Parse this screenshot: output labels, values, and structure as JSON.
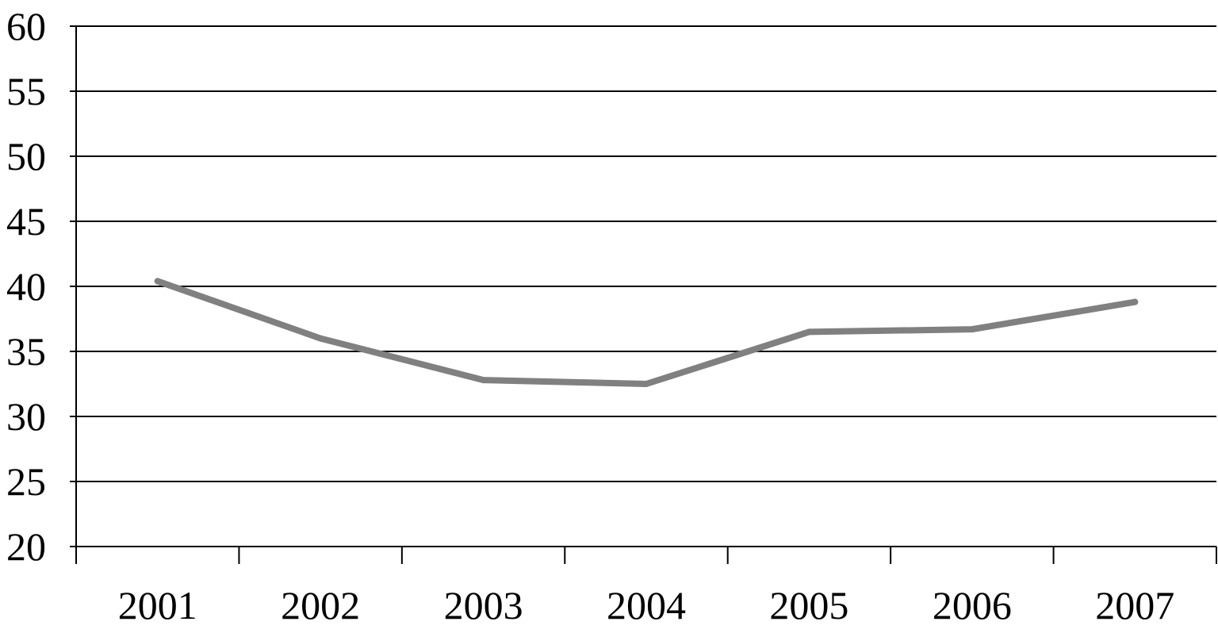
{
  "chart_data": {
    "type": "line",
    "title": "",
    "xlabel": "",
    "ylabel": "",
    "categories": [
      "2001",
      "2002",
      "2003",
      "2004",
      "2005",
      "2006",
      "2007"
    ],
    "series": [
      {
        "values": [
          40.4,
          36.0,
          32.8,
          32.5,
          36.5,
          36.7,
          38.8
        ]
      }
    ],
    "ylim": [
      20,
      60
    ],
    "yticks": [
      20,
      25,
      30,
      35,
      40,
      45,
      50,
      55,
      60
    ],
    "ytick_labels": [
      "20",
      "25",
      "30",
      "35",
      "40",
      "45",
      "50",
      "55",
      "60"
    ],
    "grid": true,
    "legend": "none",
    "colors": {
      "line": "#808080",
      "grid": "#000000",
      "axis": "#000000"
    }
  }
}
